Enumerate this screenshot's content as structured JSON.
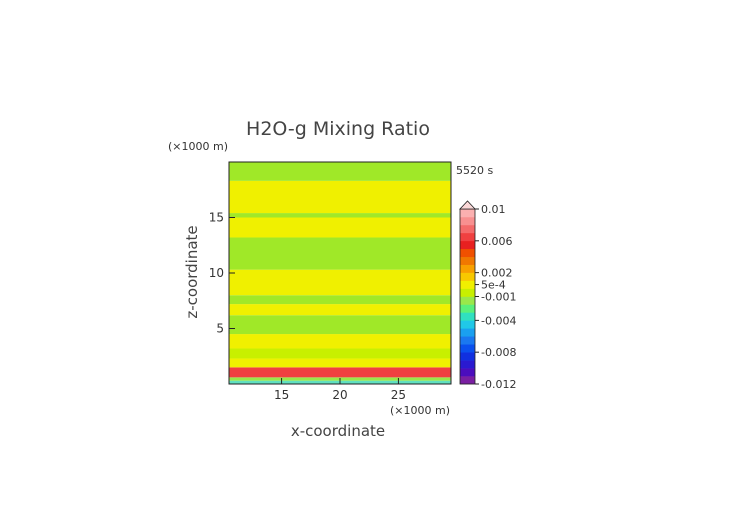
{
  "chart_data": {
    "type": "heatmap",
    "title": "H2O-g Mixing Ratio",
    "xlabel": "x-coordinate",
    "ylabel": "z-coordinate",
    "x_unit": "(×1000 m)",
    "y_unit": "(×1000 m)",
    "time_label": "5520 s",
    "xlim": [
      10.5,
      29.5
    ],
    "ylim": [
      0,
      20
    ],
    "x_ticks": [
      15,
      20,
      25
    ],
    "y_ticks": [
      5,
      10,
      15
    ],
    "colorbar": {
      "labels": [
        "0.01",
        "0.006",
        "0.002",
        "5e-4",
        "-0.001",
        "-0.004",
        "-0.008",
        "-0.012"
      ],
      "values": [
        0.01,
        0.006,
        0.002,
        0.0005,
        -0.001,
        -0.004,
        -0.008,
        -0.012
      ],
      "colors": [
        "#7a1fa2",
        "#4b0dbd",
        "#2a1ad0",
        "#1030e0",
        "#0a50ee",
        "#1a78f0",
        "#1aa0f0",
        "#20c8e8",
        "#30e0c0",
        "#5af07a",
        "#9ae84a",
        "#c8f000",
        "#f0f000",
        "#f8c800",
        "#f8a000",
        "#f07800",
        "#f05000",
        "#e82020",
        "#f04040",
        "#f46a6a",
        "#f89090",
        "#fbb0b0"
      ],
      "extend_top": true
    },
    "bands": [
      {
        "z_from": 0.0,
        "z_to": 0.3,
        "level": "-0.001",
        "color": "#60e0c0"
      },
      {
        "z_from": 0.3,
        "z_to": 0.6,
        "level": "5e-4",
        "color": "#9ae84a"
      },
      {
        "z_from": 0.6,
        "z_to": 1.5,
        "level": "0.006",
        "color": "#f04040"
      },
      {
        "z_from": 1.5,
        "z_to": 2.3,
        "level": "5e-4",
        "color": "#f0f000"
      },
      {
        "z_from": 2.3,
        "z_to": 3.2,
        "level": "-0.001",
        "color": "#c8f000"
      },
      {
        "z_from": 3.2,
        "z_to": 4.5,
        "level": "5e-4",
        "color": "#f0f000"
      },
      {
        "z_from": 4.5,
        "z_to": 6.2,
        "level": "-0.001",
        "color": "#a0e828"
      },
      {
        "z_from": 6.2,
        "z_to": 7.2,
        "level": "5e-4",
        "color": "#f0f000"
      },
      {
        "z_from": 7.2,
        "z_to": 8.0,
        "level": "-0.001",
        "color": "#a0e828"
      },
      {
        "z_from": 8.0,
        "z_to": 10.3,
        "level": "5e-4",
        "color": "#f0f000"
      },
      {
        "z_from": 10.3,
        "z_to": 13.2,
        "level": "-0.001",
        "color": "#a0e828"
      },
      {
        "z_from": 13.2,
        "z_to": 15.0,
        "level": "5e-4",
        "color": "#f0f000"
      },
      {
        "z_from": 15.0,
        "z_to": 15.4,
        "level": "-0.001",
        "color": "#a0e828"
      },
      {
        "z_from": 15.4,
        "z_to": 18.3,
        "level": "5e-4",
        "color": "#f0f000"
      },
      {
        "z_from": 18.3,
        "z_to": 20.0,
        "level": "-0.001",
        "color": "#a0e828"
      }
    ]
  }
}
